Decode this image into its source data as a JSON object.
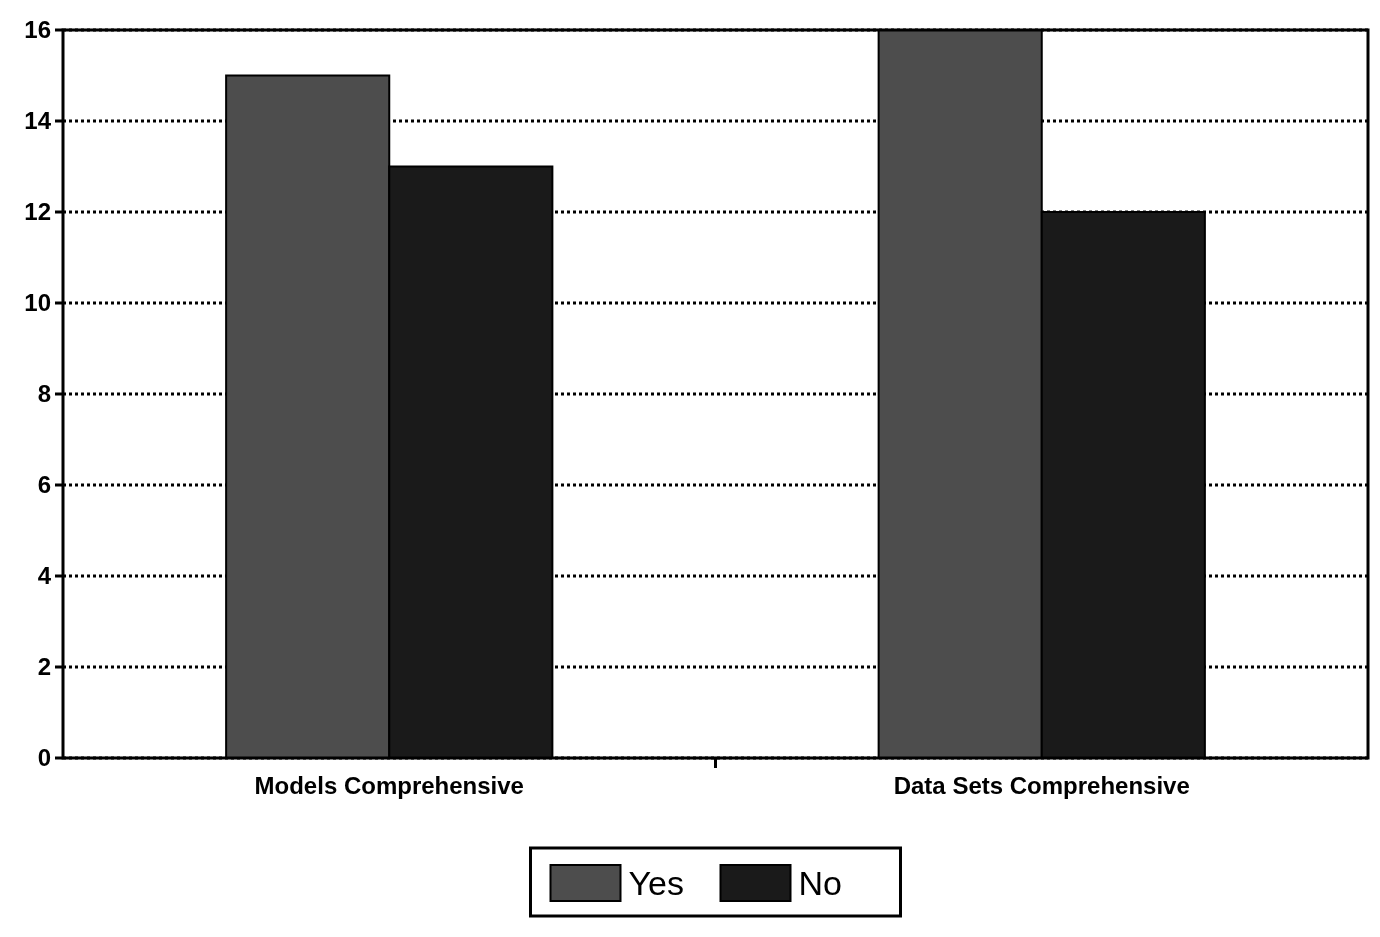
{
  "chart_data": {
    "type": "bar",
    "categories": [
      "Models Comprehensive",
      "Data Sets Comprehensive"
    ],
    "series": [
      {
        "name": "Yes",
        "color": "#4d4d4d",
        "values": [
          15,
          16
        ]
      },
      {
        "name": "No",
        "color": "#1a1a1a",
        "values": [
          13,
          12
        ]
      }
    ],
    "ylim": [
      0,
      16
    ],
    "yticks": [
      0,
      2,
      4,
      6,
      8,
      10,
      12,
      14,
      16
    ],
    "grid": "y",
    "line_style": "dotted",
    "legend": "bottom"
  }
}
